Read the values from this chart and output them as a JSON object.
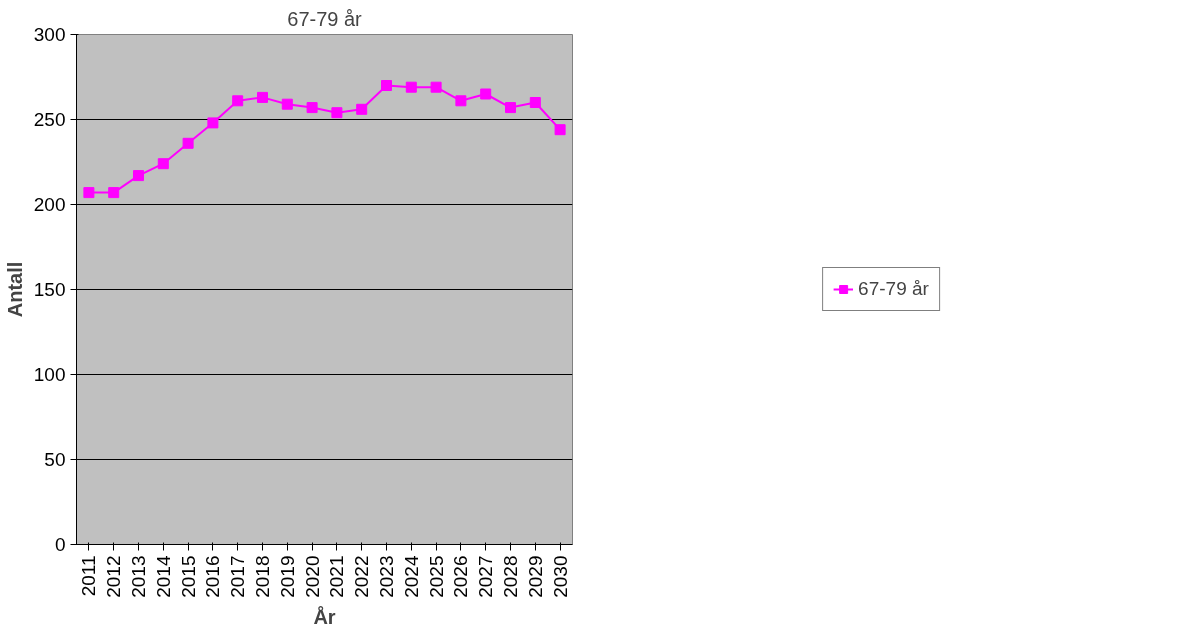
{
  "chart_data": {
    "type": "line",
    "title": "67-79 år",
    "xlabel": "År",
    "ylabel": "Antall",
    "categories": [
      "2011",
      "2012",
      "2013",
      "2014",
      "2015",
      "2016",
      "2017",
      "2018",
      "2019",
      "2020",
      "2021",
      "2022",
      "2023",
      "2024",
      "2025",
      "2026",
      "2027",
      "2028",
      "2029",
      "2030"
    ],
    "series": [
      {
        "name": "67-79 år",
        "color": "#ff00ff",
        "values": [
          207,
          207,
          217,
          224,
          236,
          248,
          261,
          263,
          259,
          257,
          254,
          256,
          270,
          269,
          269,
          261,
          265,
          257,
          260,
          244
        ]
      }
    ],
    "ylim": [
      0,
      300
    ],
    "yticks": [
      0,
      50,
      100,
      150,
      200,
      250,
      300
    ],
    "grid": "y",
    "legend": "right",
    "marker": "square"
  }
}
